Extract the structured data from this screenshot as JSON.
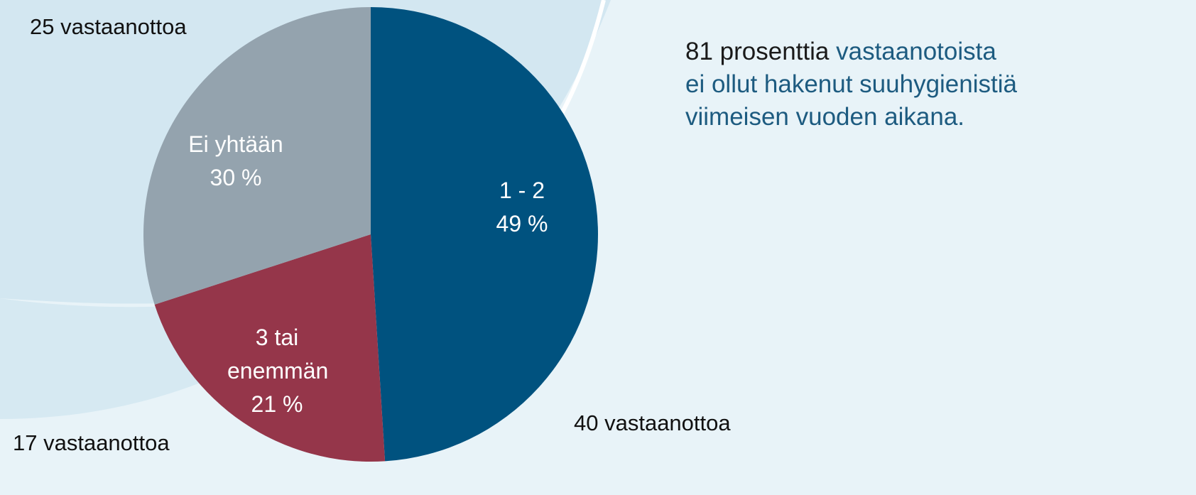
{
  "chart_data": {
    "type": "pie",
    "categories": [
      "1 - 2",
      "3 tai enemmän",
      "Ei yhtään"
    ],
    "values": [
      49,
      21,
      30
    ],
    "value_labels": [
      "49 %",
      "21 %",
      "30 %"
    ],
    "colors": [
      "#00527f",
      "#95364a",
      "#94a3ae"
    ],
    "count_labels": [
      "40 vastaanottoa",
      "17 vastaanottoa",
      "25 vastaanottoa"
    ],
    "annotation": {
      "highlight": "81 prosenttia",
      "lines": [
        "vastaanotoista",
        "ei ollut hakenut suuhygienistiä",
        "viimeisen vuoden aikana."
      ]
    }
  }
}
